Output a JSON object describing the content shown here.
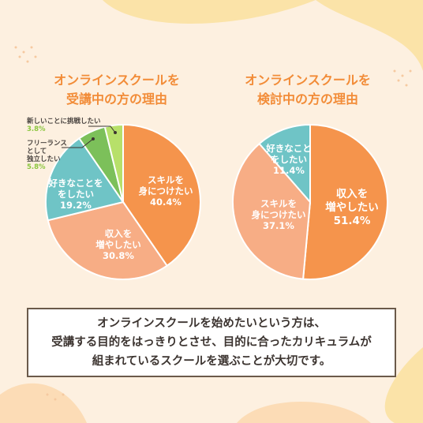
{
  "titles": {
    "left": [
      "オンラインスクールを",
      "受講中の方の理由"
    ],
    "right": [
      "オンラインスクールを",
      "検討中の方の理由"
    ]
  },
  "colors": {
    "orange": "#f5944c",
    "salmon": "#f7ad85",
    "teal": "#6fc4c6",
    "green_dark": "#7cc05a",
    "green_light": "#b7e06a",
    "title": "#f28c38",
    "bg": "#fdf0e0"
  },
  "chart_data": [
    {
      "type": "pie",
      "title": "オンラインスクールを受講中の方の理由",
      "slices": [
        {
          "label": [
            "スキルを",
            "身につけたい"
          ],
          "value": 40.4,
          "value_text": "40.4%",
          "color": "#f5944c"
        },
        {
          "label": [
            "収入を",
            "増やしたい"
          ],
          "value": 30.8,
          "value_text": "30.8%",
          "color": "#f7ad85"
        },
        {
          "label": [
            "好きなことを",
            "をしたい"
          ],
          "value": 19.2,
          "value_text": "19.2%",
          "color": "#6fc4c6"
        },
        {
          "label": [
            "フリーランス",
            "として",
            "独立したい"
          ],
          "value": 5.8,
          "value_text": "5.8%",
          "color": "#7cc05a"
        },
        {
          "label": [
            "新しいことに挑戦したい"
          ],
          "value": 3.8,
          "value_text": "3.8%",
          "color": "#b7e06a"
        }
      ]
    },
    {
      "type": "pie",
      "title": "オンラインスクールを検討中の方の理由",
      "slices": [
        {
          "label": [
            "収入を",
            "増やしたい"
          ],
          "value": 51.4,
          "value_text": "51.4%",
          "color": "#f5944c"
        },
        {
          "label": [
            "スキルを",
            "身につけたい"
          ],
          "value": 37.1,
          "value_text": "37.1%",
          "color": "#f7ad85"
        },
        {
          "label": [
            "好きなこと",
            "をしたい"
          ],
          "value": 11.4,
          "value_text": "11.4%",
          "color": "#6fc4c6"
        }
      ]
    }
  ],
  "note": [
    "オンラインスクールを始めたいという方は、",
    "受講する目的をはっきりとさせ、目的に合ったカリキュラムが",
    "組まれているスクールを選ぶことが大切です。"
  ]
}
